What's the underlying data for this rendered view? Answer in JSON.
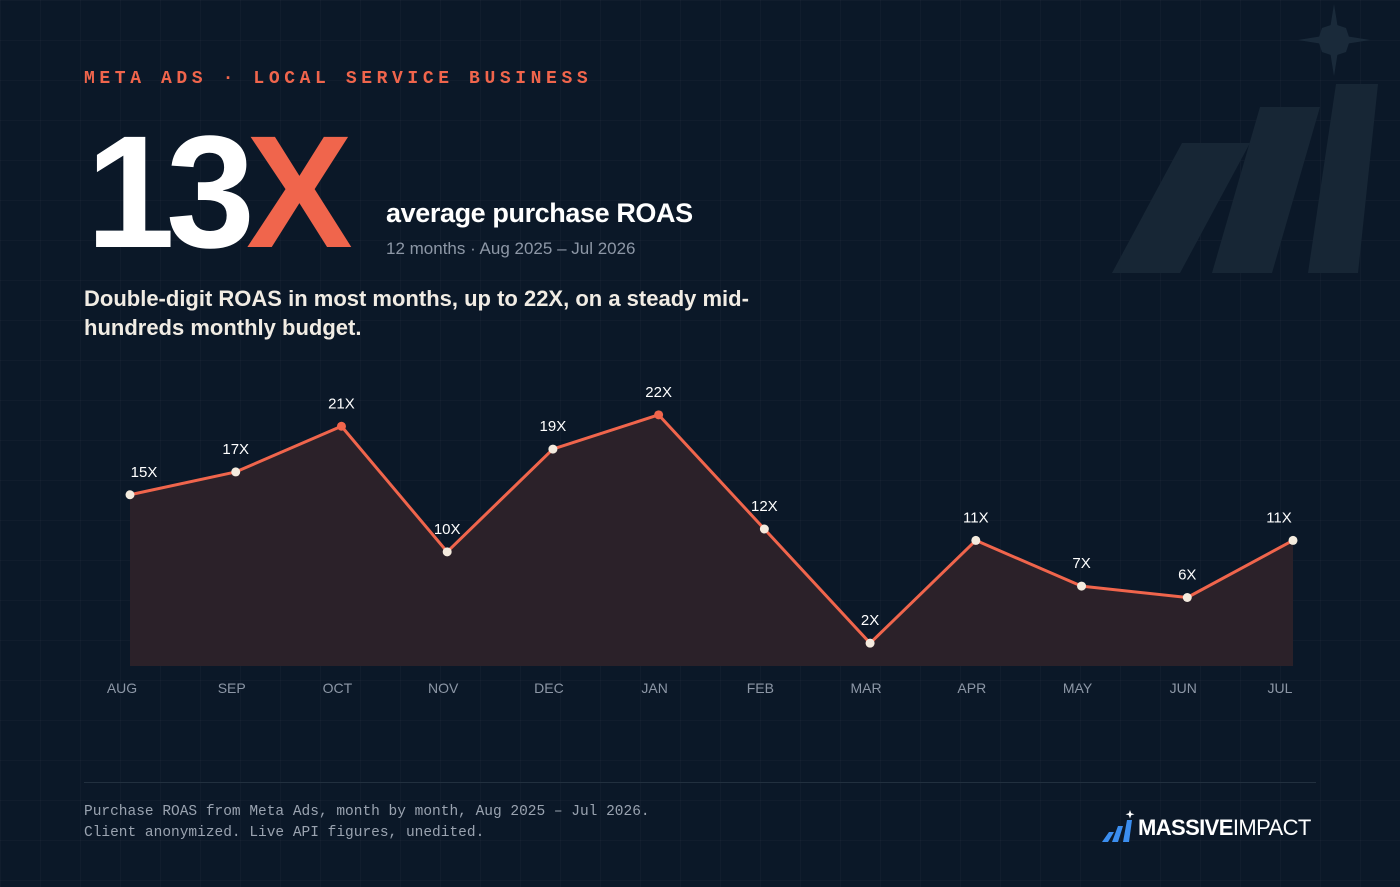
{
  "header": {
    "kicker": "META ADS · LOCAL SERVICE BUSINESS",
    "big_number": "13",
    "big_suffix": "X",
    "metric_label": "average purchase ROAS",
    "metric_sub": "12 months · Aug 2025 – Jul 2026",
    "headline_line1": "Double-digit ROAS in most months, up to 22X, on a steady mid-",
    "headline_line2": "hundreds monthly budget."
  },
  "footer": {
    "note_line1": "Purchase ROAS from Meta Ads, month by month, Aug 2025 – Jul 2026.",
    "note_line2": "Client anonymized. Live API figures, unedited.",
    "logo_bold": "MASSIVE",
    "logo_light": "IMPACT"
  },
  "colors": {
    "accent": "#f0654c",
    "background": "#0b1828",
    "text": "#ffffff",
    "muted": "#8d97a6",
    "area_fill": "#2b2129",
    "point_fill": "#f4ebde",
    "logo_blue": "#3b8ef0"
  },
  "icons": {
    "logo": "bar-chart-with-star-icon",
    "decor": "star-and-bars-icon"
  },
  "chart_data": {
    "type": "area",
    "categories": [
      "AUG",
      "SEP",
      "OCT",
      "NOV",
      "DEC",
      "JAN",
      "FEB",
      "MAR",
      "APR",
      "MAY",
      "JUN",
      "JUL"
    ],
    "values": [
      15,
      17,
      21,
      10,
      19,
      22,
      12,
      2,
      11,
      7,
      6,
      11
    ],
    "data_labels": [
      "15X",
      "17X",
      "21X",
      "10X",
      "19X",
      "22X",
      "12X",
      "2X",
      "11X",
      "7X",
      "6X",
      "11X"
    ],
    "highlighted_points": [
      "OCT",
      "JAN"
    ],
    "title": "",
    "xlabel": "",
    "ylabel": "",
    "ylim": [
      0,
      24
    ],
    "grid": false,
    "legend": "none"
  }
}
